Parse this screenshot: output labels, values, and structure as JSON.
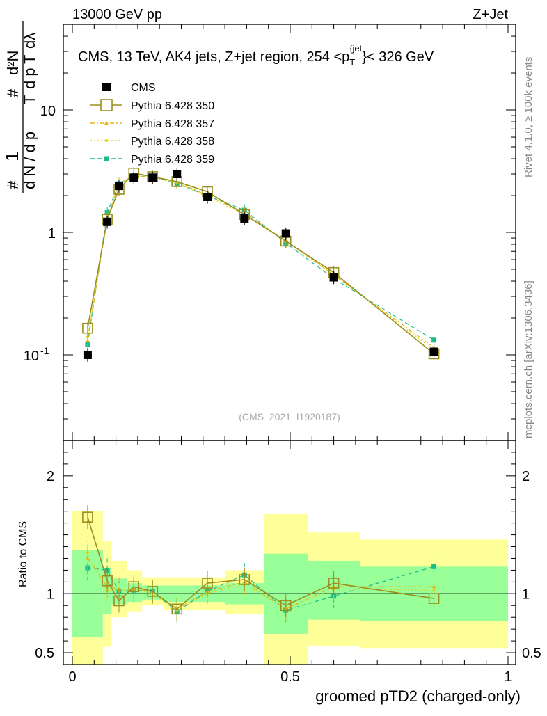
{
  "header": {
    "left": "13000 GeV pp",
    "right": "Z+Jet"
  },
  "side_labels": {
    "rivet": "Rivet 4.1.0, ≥ 100k events",
    "mcplots": "mcplots.cern.ch [arXiv:1306.3436]"
  },
  "chart_data": {
    "type": "scatter",
    "title": "CMS, 13 TeV, AK4 jets, Z+jet region, 254 <p_T^{jet}< 326 GeV",
    "title_parts": {
      "main": "CMS, 13 TeV, AK4 jets, Z+jet region, 254 <p",
      "sub": "T",
      "sup": "{jet",
      "tail": "}< 326 GeV"
    },
    "watermark": "(CMS_2021_I1920187)",
    "xlabel": "groomed pTD2 (charged-only)",
    "ylabel_main": "1/N dN/dp_T ... d²N/dp_T dλ",
    "ylabel_ratio": "Ratio to CMS",
    "xlim": [
      0,
      1
    ],
    "ylim_main": [
      0.02,
      50
    ],
    "ylim_ratio": [
      0.4,
      2.3
    ],
    "x_ticks": [
      "0",
      "0.5",
      "1"
    ],
    "main_ticks": [
      "10^{-1}",
      "1",
      "10"
    ],
    "ratio_ticks": [
      "0.5",
      "1",
      "2"
    ],
    "x": [
      0.035,
      0.08,
      0.107,
      0.141,
      0.184,
      0.24,
      0.31,
      0.395,
      0.49,
      0.6,
      0.83
    ],
    "series": [
      {
        "name": "CMS",
        "color": "#000000",
        "style": "square-filled",
        "values": [
          0.1,
          1.22,
          2.4,
          2.8,
          2.8,
          3.0,
          1.95,
          1.3,
          0.98,
          0.43,
          0.106
        ],
        "ratio": [
          1,
          1,
          1,
          1,
          1,
          1,
          1,
          1,
          1,
          1,
          1
        ]
      },
      {
        "name": "Pythia 6.428 350",
        "color": "#9a8f1e",
        "style": "square-open-solid",
        "values": [
          0.165,
          1.28,
          2.25,
          3.05,
          2.85,
          2.6,
          2.15,
          1.4,
          0.85,
          0.47,
          0.102
        ],
        "ratio": [
          1.65,
          1.11,
          0.94,
          1.06,
          1.02,
          0.87,
          1.09,
          1.12,
          0.9,
          1.09,
          0.96
        ]
      },
      {
        "name": "Pythia 6.428 357",
        "color": "#e3b518",
        "style": "triangle-dashdot",
        "values": [
          0.13,
          1.3,
          2.5,
          2.9,
          2.85,
          2.6,
          2.0,
          1.45,
          0.85,
          0.45,
          0.115
        ],
        "ratio": [
          1.3,
          1.06,
          1.04,
          1.04,
          1.02,
          0.87,
          1.02,
          1.1,
          0.87,
          1.06,
          1.06
        ]
      },
      {
        "name": "Pythia 6.428 358",
        "color": "#d9d414",
        "style": "dot-dotted",
        "values": [
          0.14,
          1.25,
          2.45,
          2.9,
          2.8,
          2.55,
          1.95,
          1.4,
          0.85,
          0.45,
          0.11
        ],
        "ratio": [
          1.35,
          1.03,
          1.02,
          1.04,
          1.0,
          0.86,
          1.0,
          1.08,
          0.87,
          1.04,
          1.03
        ]
      },
      {
        "name": "Pythia 6.428 359",
        "color": "#1dbb87",
        "style": "square-small-dashed",
        "values": [
          0.122,
          1.45,
          2.5,
          2.9,
          2.85,
          2.5,
          2.0,
          1.52,
          0.82,
          0.42,
          0.132
        ],
        "ratio": [
          1.22,
          1.2,
          1.02,
          1.03,
          1.02,
          0.85,
          1.02,
          1.16,
          0.86,
          0.98,
          1.23
        ]
      }
    ],
    "uncertainty_bands": {
      "x_edges": [
        0.0,
        0.07,
        0.09,
        0.125,
        0.16,
        0.21,
        0.28,
        0.35,
        0.44,
        0.54,
        0.66,
        1.0
      ],
      "green_low": [
        0.63,
        0.83,
        0.91,
        0.93,
        0.95,
        0.93,
        0.93,
        0.91,
        0.66,
        0.78,
        0.77
      ],
      "green_high": [
        1.37,
        1.22,
        1.13,
        1.09,
        1.07,
        1.07,
        1.07,
        1.09,
        1.34,
        1.28,
        1.23
      ],
      "yellow_low": [
        0.3,
        0.55,
        0.8,
        0.85,
        0.9,
        0.86,
        0.86,
        0.83,
        0.3,
        0.56,
        0.54
      ],
      "yellow_high": [
        1.7,
        1.45,
        1.28,
        1.2,
        1.14,
        1.14,
        1.14,
        1.2,
        1.68,
        1.52,
        1.46
      ]
    },
    "legend_position": "top-left"
  }
}
